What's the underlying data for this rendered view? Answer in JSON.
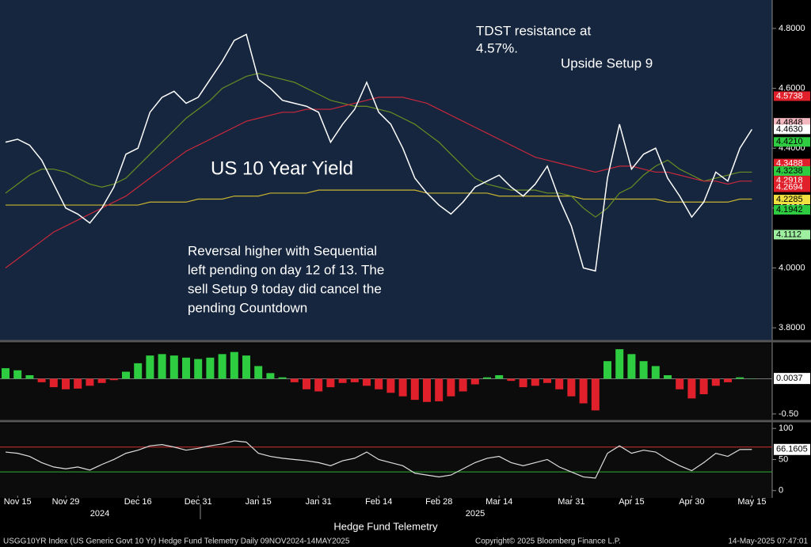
{
  "chart_data": [
    {
      "type": "line",
      "title": "US 10 Year Yield",
      "categories": [
        null,
        "Nov 15",
        null,
        null,
        null,
        "Nov 29",
        null,
        null,
        null,
        null,
        null,
        "Dec 16",
        null,
        null,
        null,
        null,
        "Dec 31",
        null,
        null,
        null,
        null,
        "Jan 15",
        null,
        null,
        null,
        null,
        "Jan 31",
        null,
        null,
        null,
        null,
        "Feb 14",
        null,
        null,
        null,
        null,
        "Feb 28",
        null,
        null,
        null,
        null,
        "Mar 14",
        null,
        null,
        null,
        null,
        null,
        "Mar 31",
        null,
        null,
        null,
        null,
        "Apr 15",
        null,
        null,
        null,
        null,
        "Apr 30",
        null,
        null,
        null,
        null,
        "May 15"
      ],
      "series": [
        {
          "color": "#ffffff",
          "values": [
            4.42,
            4.43,
            4.41,
            4.36,
            4.28,
            4.2,
            4.18,
            4.15,
            4.2,
            4.27,
            4.38,
            4.4,
            4.52,
            4.57,
            4.59,
            4.55,
            4.57,
            4.63,
            4.69,
            4.76,
            4.78,
            4.63,
            4.6,
            4.56,
            4.55,
            4.54,
            4.52,
            4.42,
            4.48,
            4.53,
            4.62,
            4.52,
            4.48,
            4.4,
            4.3,
            4.25,
            4.21,
            4.18,
            4.22,
            4.27,
            4.29,
            4.31,
            4.27,
            4.24,
            4.28,
            4.34,
            4.23,
            4.14,
            4.0,
            3.99,
            4.3,
            4.48,
            4.33,
            4.38,
            4.4,
            4.3,
            4.24,
            4.17,
            4.22,
            4.32,
            4.29,
            4.4,
            4.463
          ]
        },
        {
          "color": "#c8283c",
          "values": [
            4.0,
            4.03,
            4.06,
            4.09,
            4.12,
            4.14,
            4.16,
            4.18,
            4.2,
            4.22,
            4.24,
            4.27,
            4.3,
            4.33,
            4.36,
            4.39,
            4.41,
            4.43,
            4.45,
            4.47,
            4.49,
            4.5,
            4.51,
            4.52,
            4.52,
            4.53,
            4.53,
            4.53,
            4.54,
            4.55,
            4.56,
            4.57,
            4.57,
            4.57,
            4.56,
            4.55,
            4.53,
            4.51,
            4.49,
            4.47,
            4.45,
            4.43,
            4.41,
            4.39,
            4.37,
            4.36,
            4.35,
            4.34,
            4.33,
            4.32,
            4.33,
            4.34,
            4.34,
            4.33,
            4.32,
            4.32,
            4.31,
            4.3,
            4.29,
            4.29,
            4.28,
            4.29,
            4.29
          ]
        },
        {
          "color": "#6b8e23",
          "values": [
            4.25,
            4.28,
            4.31,
            4.33,
            4.33,
            4.32,
            4.3,
            4.28,
            4.27,
            4.28,
            4.3,
            4.34,
            4.38,
            4.42,
            4.46,
            4.5,
            4.53,
            4.56,
            4.6,
            4.62,
            4.64,
            4.65,
            4.64,
            4.63,
            4.62,
            4.6,
            4.58,
            4.56,
            4.55,
            4.54,
            4.54,
            4.53,
            4.52,
            4.5,
            4.48,
            4.45,
            4.42,
            4.38,
            4.34,
            4.3,
            4.28,
            4.27,
            4.26,
            4.26,
            4.26,
            4.25,
            4.25,
            4.24,
            4.2,
            4.17,
            4.2,
            4.25,
            4.27,
            4.31,
            4.34,
            4.36,
            4.33,
            4.31,
            4.29,
            4.3,
            4.31,
            4.32,
            4.32
          ]
        },
        {
          "color": "#c8b432",
          "values": [
            4.21,
            4.21,
            4.21,
            4.21,
            4.21,
            4.21,
            4.21,
            4.21,
            4.21,
            4.21,
            4.21,
            4.21,
            4.22,
            4.22,
            4.22,
            4.22,
            4.23,
            4.23,
            4.23,
            4.24,
            4.24,
            4.24,
            4.25,
            4.25,
            4.25,
            4.25,
            4.26,
            4.26,
            4.26,
            4.26,
            4.26,
            4.26,
            4.26,
            4.26,
            4.26,
            4.25,
            4.25,
            4.25,
            4.25,
            4.25,
            4.25,
            4.24,
            4.24,
            4.24,
            4.24,
            4.24,
            4.24,
            4.24,
            4.23,
            4.23,
            4.23,
            4.23,
            4.23,
            4.23,
            4.23,
            4.22,
            4.22,
            4.22,
            4.22,
            4.22,
            4.22,
            4.23,
            4.23
          ]
        }
      ],
      "ylim": [
        3.758,
        4.895
      ],
      "yticks": [
        {
          "value": 3.8,
          "label": "3.8000"
        },
        {
          "value": 4.0,
          "label": "4.0000"
        },
        {
          "value": 4.2,
          "label": "4.2000"
        },
        {
          "value": 4.4,
          "label": "4.4000"
        },
        {
          "value": 4.6,
          "label": "4.6000"
        },
        {
          "value": 4.8,
          "label": "4.8000"
        }
      ],
      "price_tags": [
        {
          "value": 4.5738,
          "label": "4.5738",
          "color": "#e0202a"
        },
        {
          "value": 4.4848,
          "label": "4.4848",
          "color": "#f4b8c0"
        },
        {
          "value": 4.463,
          "label": "4.4630",
          "color": "#ffffff"
        },
        {
          "value": 4.421,
          "label": "4.4210",
          "color": "#2ecc40"
        },
        {
          "value": 4.3488,
          "label": "4.3488",
          "color": "#e0202a"
        },
        {
          "value": 4.3238,
          "label": "4.3238",
          "color": "#2ecc40"
        },
        {
          "value": 4.2918,
          "label": "4.2918",
          "color": "#e0202a"
        },
        {
          "value": 4.2694,
          "label": "4.2694",
          "color": "#e0202a"
        },
        {
          "value": 4.2285,
          "label": "4.2285",
          "color": "#f0e040"
        },
        {
          "value": 4.1942,
          "label": "4.1942",
          "color": "#2ecc40"
        },
        {
          "value": 4.1112,
          "label": "4.1112",
          "color": "#9ef0a0"
        }
      ],
      "annotations": [
        {
          "lines": [
            "TDST resistance at",
            "4.57%."
          ]
        },
        {
          "lines": [
            "Upside Setup 9"
          ]
        },
        {
          "lines": [
            "Reversal higher with Sequential",
            "left pending on day 12 of 13.  The",
            "sell Setup 9 today did cancel the",
            "pending Countdown"
          ]
        }
      ],
      "year_labels": [
        "2024",
        "2025"
      ],
      "x_label": "Hedge Fund Telemetry"
    },
    {
      "type": "bar",
      "colors": {
        "positive": "#2ecc40",
        "negative": "#e0202a"
      },
      "values": [
        0.15,
        0.12,
        0.05,
        -0.05,
        -0.12,
        -0.15,
        -0.14,
        -0.1,
        -0.06,
        -0.02,
        0.1,
        0.22,
        0.33,
        0.35,
        0.33,
        0.3,
        0.28,
        0.3,
        0.35,
        0.38,
        0.33,
        0.18,
        0.08,
        0.02,
        -0.05,
        -0.15,
        -0.18,
        -0.12,
        -0.06,
        -0.05,
        -0.1,
        -0.15,
        -0.2,
        -0.25,
        -0.3,
        -0.33,
        -0.32,
        -0.25,
        -0.18,
        -0.08,
        0.02,
        0.05,
        -0.03,
        -0.12,
        -0.1,
        -0.06,
        -0.15,
        -0.25,
        -0.35,
        -0.45,
        0.25,
        0.42,
        0.35,
        0.25,
        0.18,
        0.05,
        -0.15,
        -0.28,
        -0.22,
        -0.1,
        -0.05,
        0.02,
        0.0037
      ],
      "ylim": [
        -0.58,
        0.5
      ],
      "yticks": [
        {
          "value": -0.5,
          "label": "-0.50"
        }
      ]
    },
    {
      "type": "line",
      "color": "#dddddd",
      "values": [
        62,
        60,
        55,
        45,
        38,
        35,
        38,
        33,
        42,
        50,
        60,
        65,
        72,
        74,
        70,
        65,
        68,
        72,
        75,
        80,
        78,
        60,
        55,
        52,
        50,
        48,
        45,
        40,
        48,
        52,
        62,
        50,
        45,
        40,
        28,
        25,
        22,
        25,
        35,
        45,
        52,
        55,
        45,
        40,
        45,
        50,
        38,
        30,
        22,
        20,
        60,
        72,
        60,
        65,
        62,
        50,
        40,
        32,
        45,
        60,
        55,
        66,
        66.1605
      ],
      "ylim": [
        -11.8,
        107.9
      ],
      "yticks": [
        0,
        50,
        100
      ],
      "levels": [
        {
          "value": 70,
          "color": "#d03030"
        },
        {
          "value": 30,
          "color": "#30b030"
        }
      ]
    }
  ],
  "footer": {
    "left": "USGG10YR Index (US Generic Govt 10 Yr) Hedge Fund Telemetry  Daily 09NOV2024-14MAY2025",
    "center": "Copyright© 2025 Bloomberg Finance L.P.",
    "right": "14-May-2025 07:47:01"
  }
}
